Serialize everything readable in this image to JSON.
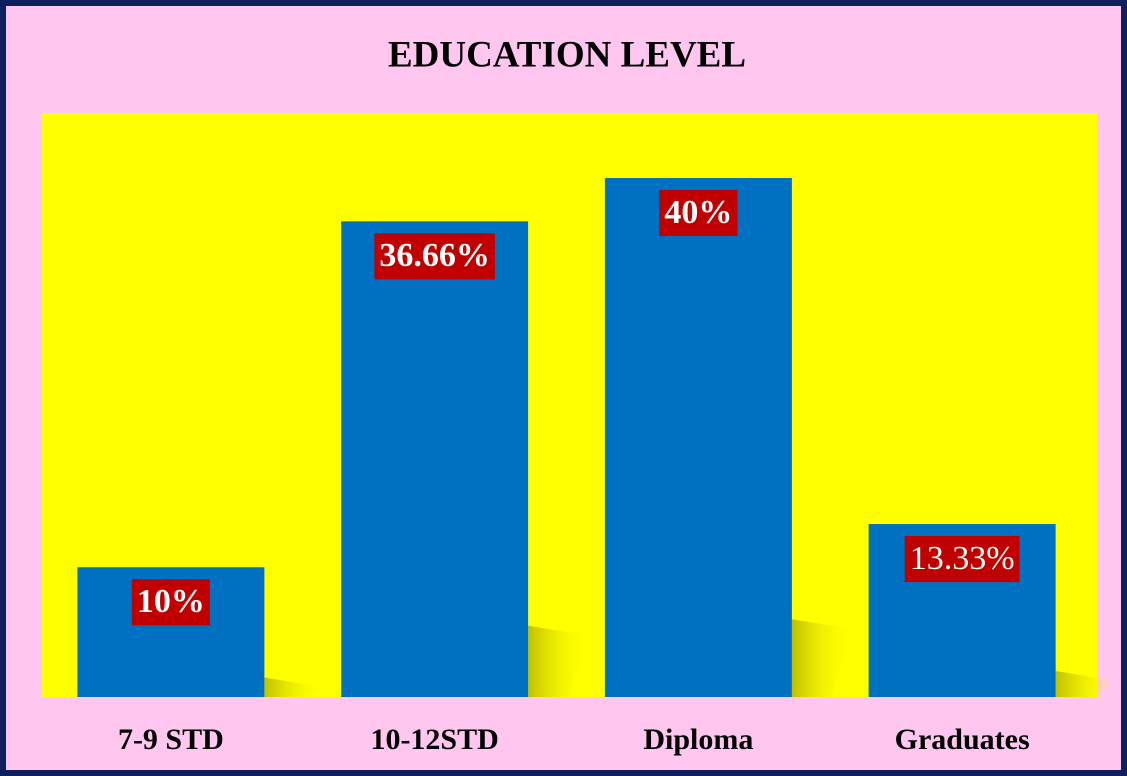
{
  "chart_data": {
    "type": "bar",
    "title": "EDUCATION LEVEL",
    "categories": [
      "7-9 STD",
      "10-12STD",
      "Diploma",
      "Graduates"
    ],
    "values": [
      10,
      36.66,
      40,
      13.33
    ],
    "value_labels": [
      "10%",
      "36.66%",
      "40%",
      "13.33%"
    ],
    "color": "#0070c0",
    "grid": false
  }
}
